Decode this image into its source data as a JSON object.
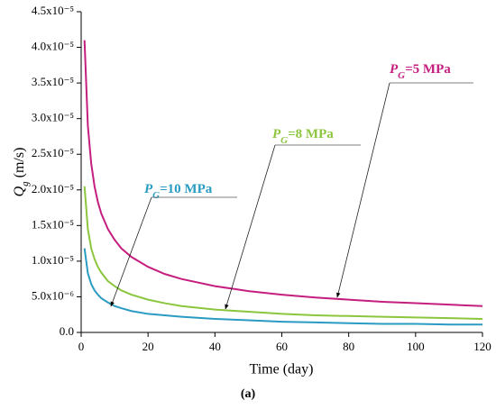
{
  "chart_data": {
    "type": "line",
    "x_label": "Time (day)",
    "y_label": "Qg (m/s)",
    "caption": "(a)",
    "xlim": [
      0,
      120
    ],
    "xticks": [
      0,
      20,
      40,
      60,
      80,
      100,
      120
    ],
    "ylim": [
      0,
      4.5e-05
    ],
    "yticks": [
      {
        "value": 0,
        "label": "0.0"
      },
      {
        "value": 5e-06,
        "label": "5.0x10⁻⁶"
      },
      {
        "value": 1e-05,
        "label": "1.0x10⁻⁵"
      },
      {
        "value": 1.5e-05,
        "label": "1.5x10⁻⁵"
      },
      {
        "value": 2e-05,
        "label": "2.0x10⁻⁵"
      },
      {
        "value": 2.5e-05,
        "label": "2.5x10⁻⁵"
      },
      {
        "value": 3e-05,
        "label": "3.0x10⁻⁵"
      },
      {
        "value": 3.5e-05,
        "label": "3.5x10⁻⁵"
      },
      {
        "value": 4e-05,
        "label": "4.0x10⁻⁵"
      },
      {
        "value": 4.5e-05,
        "label": "4.5x10⁻⁵"
      }
    ],
    "x": [
      1,
      2,
      3,
      4,
      5,
      6,
      8,
      10,
      12,
      15,
      20,
      25,
      30,
      40,
      50,
      60,
      70,
      80,
      90,
      100,
      110,
      120
    ],
    "series": [
      {
        "name": "PG=5 MPa",
        "color": "#c41f7f",
        "values": [
          4.1e-05,
          2.9e-05,
          2.37e-05,
          2.05e-05,
          1.83e-05,
          1.67e-05,
          1.45e-05,
          1.3e-05,
          1.18e-05,
          1.06e-05,
          9.2e-06,
          8.2e-06,
          7.5e-06,
          6.5e-06,
          5.8e-06,
          5.3e-06,
          4.9e-06,
          4.6e-06,
          4.3e-06,
          4.1e-06,
          3.9e-06,
          3.7e-06
        ]
      },
      {
        "name": "PG=8 MPa",
        "color": "#8cc63e",
        "values": [
          2.05e-05,
          1.45e-05,
          1.18e-05,
          1.03e-05,
          9.2e-06,
          8.4e-06,
          7.2e-06,
          6.5e-06,
          5.9e-06,
          5.3e-06,
          4.6e-06,
          4.1e-06,
          3.7e-06,
          3.2e-06,
          2.9e-06,
          2.6e-06,
          2.4e-06,
          2.3e-06,
          2.2e-06,
          2.1e-06,
          2e-06,
          1.9e-06
        ]
      },
      {
        "name": "PG=10 MPa",
        "color": "#2a9bc2",
        "values": [
          1.18e-05,
          8.3e-06,
          6.8e-06,
          5.9e-06,
          5.3e-06,
          4.8e-06,
          4.2e-06,
          3.7e-06,
          3.4e-06,
          3e-06,
          2.6e-06,
          2.4e-06,
          2.2e-06,
          1.9e-06,
          1.7e-06,
          1.5e-06,
          1.4e-06,
          1.3e-06,
          1.2e-06,
          1.2e-06,
          1.1e-06,
          1.1e-06
        ]
      }
    ]
  }
}
